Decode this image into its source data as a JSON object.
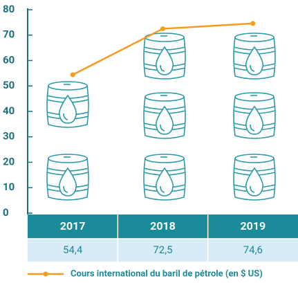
{
  "chart_data": {
    "type": "line",
    "categories": [
      "2017",
      "2018",
      "2019"
    ],
    "series": [
      {
        "name": "Cours international du baril de pétrole (en $ US)",
        "color": "#f39c1f",
        "values": [
          54.4,
          72.5,
          74.6
        ],
        "value_labels": [
          "54,4",
          "72,5",
          "74,6"
        ]
      }
    ],
    "ylim": [
      0,
      80
    ],
    "yticks": [
      0,
      10,
      20,
      30,
      40,
      50,
      60,
      70,
      80
    ]
  }
}
